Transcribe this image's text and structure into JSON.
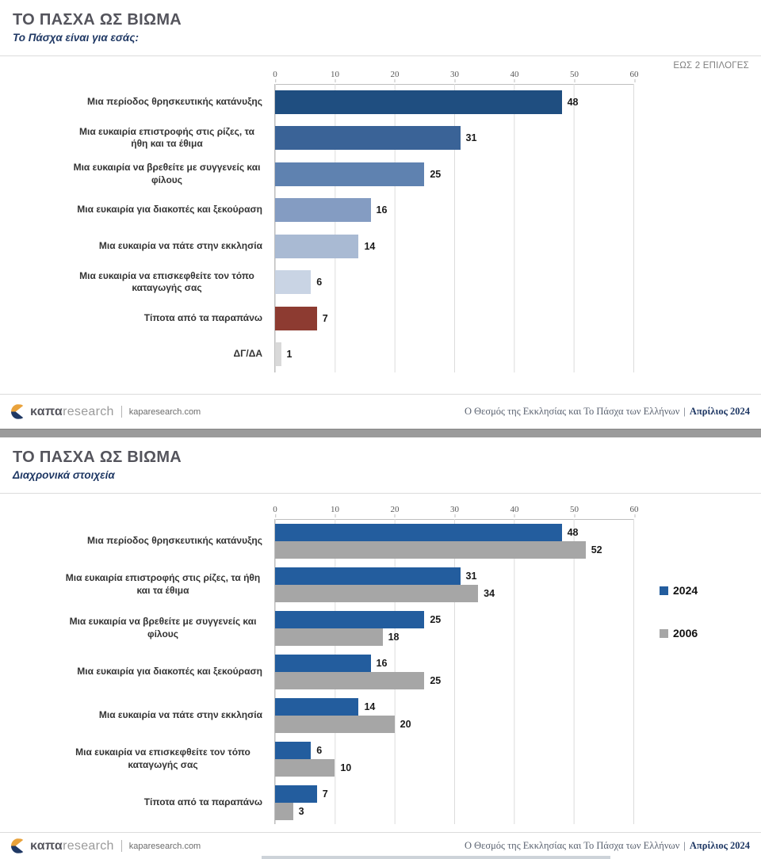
{
  "slides": [
    {
      "title": "ΤΟ ΠΑΣΧΑ ΩΣ ΒΙΩΜΑ",
      "subtitle": "Το Πάσχα είναι για εσάς:",
      "note": "ΕΩΣ 2 ΕΠΙΛΟΓΕΣ"
    },
    {
      "title": "ΤΟ ΠΑΣΧΑ ΩΣ ΒΙΩΜΑ",
      "subtitle": "Διαχρονικά στοιχεία"
    }
  ],
  "footer": {
    "logo_bold": "καπα",
    "logo_light": "research",
    "site": "kaparesearch.com",
    "report_title": "Ο Θεσμός της Εκκλησίας και Το Πάσχα των Ελλήνων",
    "report_separator": "|",
    "report_date": "Απρίλιος 2024",
    "logo_colors": {
      "top": "#E9A23B",
      "bottom": "#1F3864"
    }
  },
  "chart_data": [
    {
      "type": "bar",
      "orientation": "horizontal",
      "title": "Το Πάσχα είναι για εσάς:",
      "note": "ΕΩΣ 2 ΕΠΙΛΟΓΕΣ",
      "categories": [
        "Μια περίοδος θρησκευτικής κατάνυξης",
        "Μια ευκαιρία επιστροφής στις ρίζες, τα ήθη και τα έθιμα",
        "Μια ευκαιρία να βρεθείτε με συγγενείς και φίλους",
        "Μια ευκαιρία για διακοπές και ξεκούραση",
        "Μια ευκαιρία να πάτε στην εκκλησία",
        "Μια ευκαιρία να επισκεφθείτε τον τόπο καταγωγής σας",
        "Τίποτα από τα παραπάνω",
        "ΔΓ/ΔΑ"
      ],
      "values": [
        48,
        31,
        25,
        16,
        14,
        6,
        7,
        1
      ],
      "bar_colors": [
        "#1F4E80",
        "#3A6397",
        "#5F82B0",
        "#849CC2",
        "#A9BAD3",
        "#C9D4E4",
        "#8D3B31",
        "#D9D9D9"
      ],
      "xlim": [
        0,
        60
      ],
      "xticks": [
        0,
        10,
        20,
        30,
        40,
        50,
        60
      ],
      "grid": true,
      "axis_position": "top"
    },
    {
      "type": "bar",
      "orientation": "horizontal",
      "title": "Διαχρονικά στοιχεία",
      "categories": [
        "Μια περίοδος θρησκευτικής κατάνυξης",
        "Μια ευκαιρία επιστροφής στις ρίζες, τα ήθη και τα έθιμα",
        "Μια ευκαιρία να βρεθείτε με συγγενείς και φίλους",
        "Μια ευκαιρία για διακοπές και ξεκούραση",
        "Μια ευκαιρία να πάτε στην εκκλησία",
        "Μια ευκαιρία να επισκεφθείτε τον τόπο καταγωγής σας",
        "Τίποτα από τα παραπάνω"
      ],
      "series": [
        {
          "name": "2024",
          "color": "#235D9E",
          "values": [
            48,
            31,
            25,
            16,
            14,
            6,
            7
          ]
        },
        {
          "name": "2006",
          "color": "#A6A6A6",
          "values": [
            52,
            34,
            18,
            25,
            20,
            10,
            3
          ]
        }
      ],
      "xlim": [
        0,
        60
      ],
      "xticks": [
        0,
        10,
        20,
        30,
        40,
        50,
        60
      ],
      "grid": true,
      "axis_position": "top",
      "legend_position": "right"
    }
  ]
}
